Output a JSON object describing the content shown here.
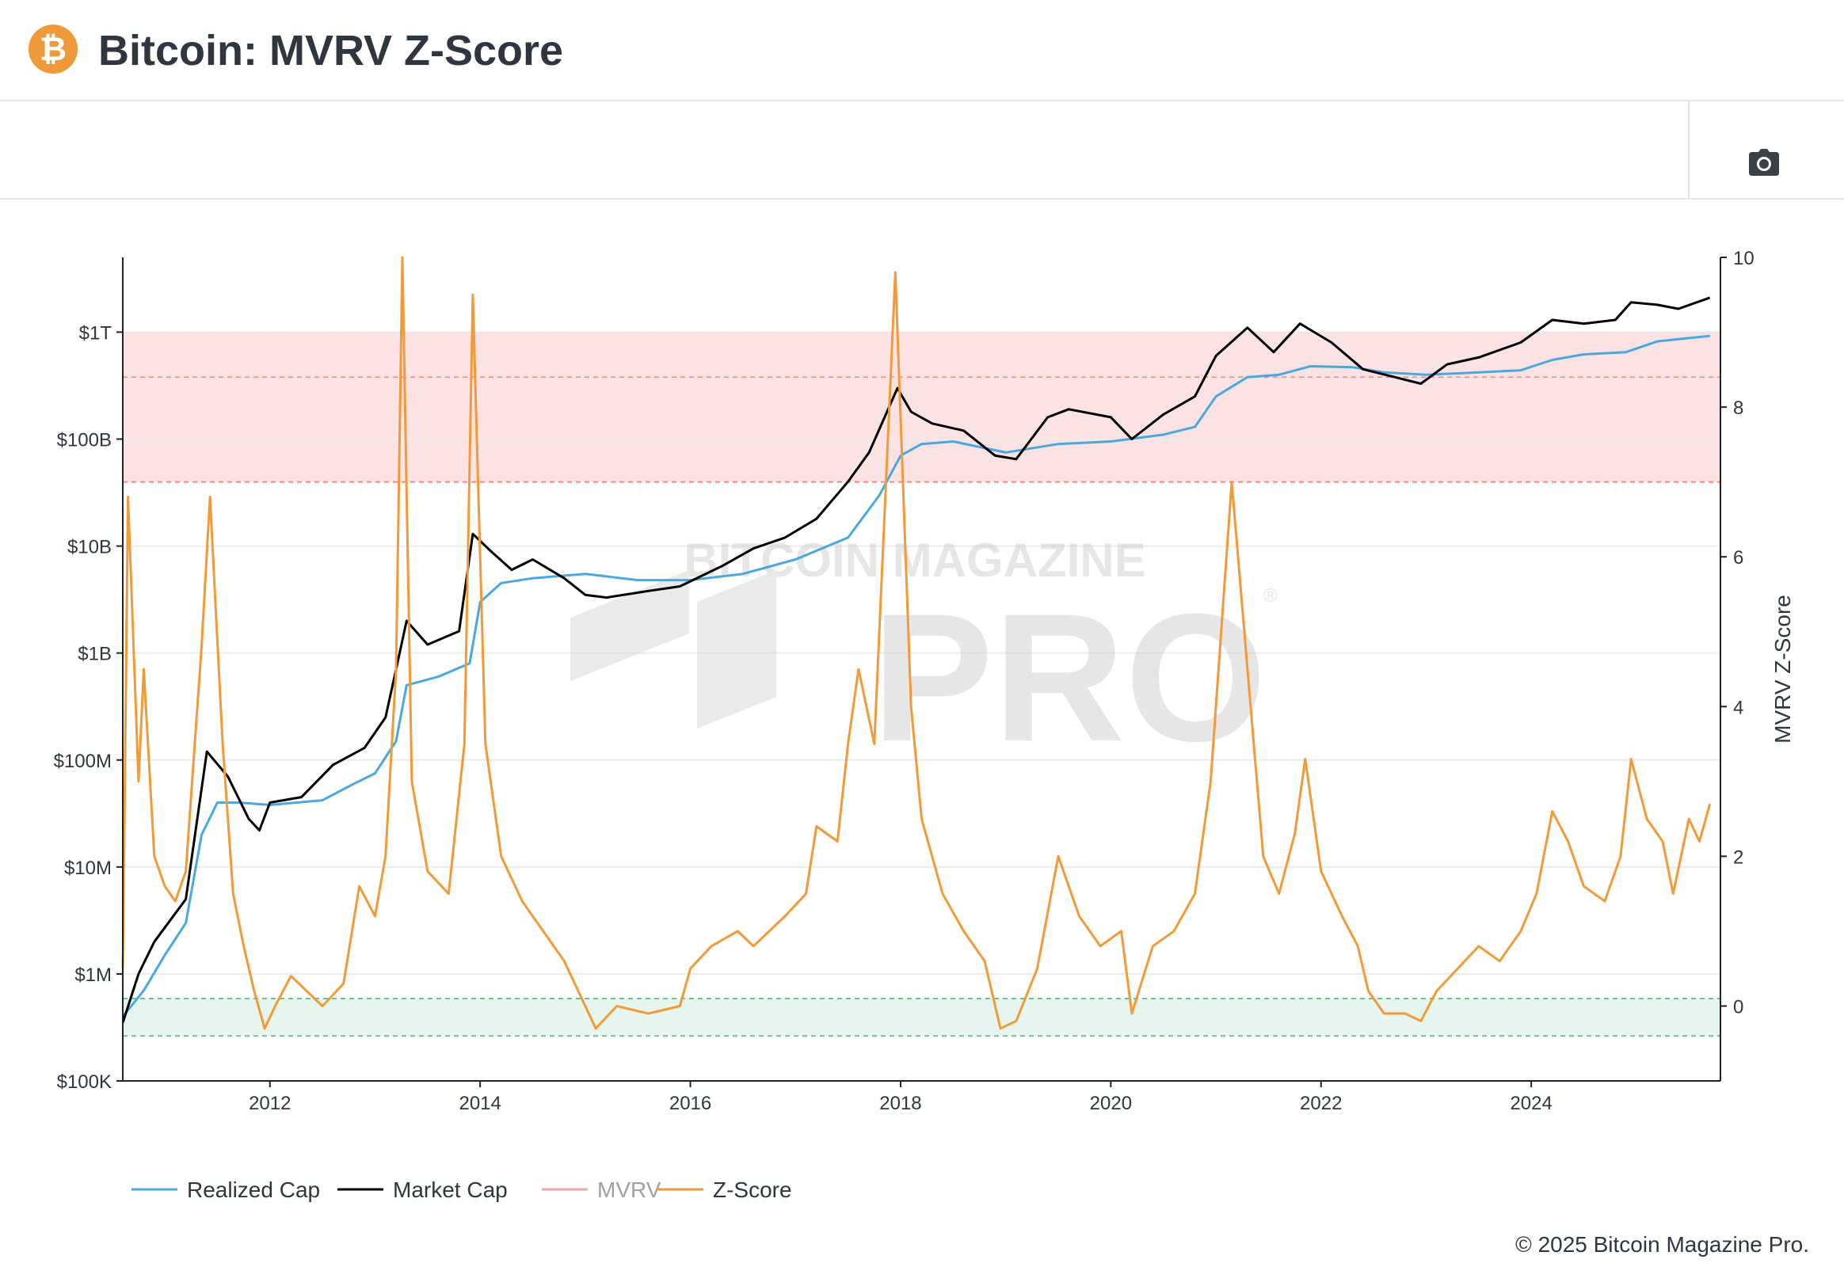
{
  "header": {
    "title": "Bitcoin: MVRV Z-Score",
    "logo_glyph": "₿",
    "logo_color": "#ef9a3a",
    "camera_icon": "camera-icon"
  },
  "watermark": {
    "line1": "BITCOIN MAGAZINE",
    "line2": "PRO",
    "registered": "®"
  },
  "footer": {
    "copyright": "© 2025 Bitcoin Magazine Pro."
  },
  "chart_data": {
    "type": "line",
    "title": "Bitcoin: MVRV Z-Score",
    "x_range": [
      2010.6,
      2025.8
    ],
    "x_ticks": [
      {
        "value": 2012,
        "label": "2012"
      },
      {
        "value": 2014,
        "label": "2014"
      },
      {
        "value": 2016,
        "label": "2016"
      },
      {
        "value": 2018,
        "label": "2018"
      },
      {
        "value": 2020,
        "label": "2020"
      },
      {
        "value": 2022,
        "label": "2022"
      },
      {
        "value": 2024,
        "label": "2024"
      }
    ],
    "y_left": {
      "scale": "log",
      "range": [
        100000,
        5000000000000
      ],
      "ticks": [
        {
          "value": 1000000000000,
          "label": "$1T"
        },
        {
          "value": 100000000000,
          "label": "$100B"
        },
        {
          "value": 10000000000,
          "label": "$10B"
        },
        {
          "value": 1000000000,
          "label": "$1B"
        },
        {
          "value": 100000000,
          "label": "$100M"
        },
        {
          "value": 10000000,
          "label": "$10M"
        },
        {
          "value": 1000000,
          "label": "$1M"
        },
        {
          "value": 100000,
          "label": "$100K"
        }
      ]
    },
    "y_right": {
      "label": "MVRV Z-Score",
      "range": [
        -1,
        10
      ],
      "ticks": [
        {
          "value": 10,
          "label": "10"
        },
        {
          "value": 8,
          "label": "8"
        },
        {
          "value": 6,
          "label": "6"
        },
        {
          "value": 4,
          "label": "4"
        },
        {
          "value": 2,
          "label": "2"
        },
        {
          "value": 0,
          "label": "0"
        }
      ]
    },
    "bands": [
      {
        "name": "red-zone",
        "from": 7,
        "to": 9,
        "color": "#fbe3e3",
        "line": "#e88a8a",
        "mid_line": 8.4
      },
      {
        "name": "green-zone",
        "from": -0.4,
        "to": 0.1,
        "color": "#e6f6ee",
        "line": "#6cc48b"
      }
    ],
    "series": [
      {
        "name": "Realized Cap",
        "color": "#4aa8e0",
        "axis": "left",
        "points": [
          [
            2010.6,
            400000
          ],
          [
            2010.8,
            700000
          ],
          [
            2011.0,
            1500000
          ],
          [
            2011.2,
            3000000
          ],
          [
            2011.35,
            20000000
          ],
          [
            2011.5,
            40000000
          ],
          [
            2011.7,
            40000000
          ],
          [
            2012.0,
            38000000
          ],
          [
            2012.5,
            42000000
          ],
          [
            2012.8,
            60000000
          ],
          [
            2013.0,
            75000000
          ],
          [
            2013.2,
            150000000
          ],
          [
            2013.3,
            500000000
          ],
          [
            2013.6,
            600000000
          ],
          [
            2013.9,
            800000000
          ],
          [
            2014.0,
            3000000000
          ],
          [
            2014.2,
            4500000000
          ],
          [
            2014.5,
            5000000000
          ],
          [
            2015.0,
            5500000000
          ],
          [
            2015.5,
            4800000000
          ],
          [
            2016.0,
            4800000000
          ],
          [
            2016.5,
            5500000000
          ],
          [
            2017.0,
            7500000000
          ],
          [
            2017.5,
            12000000000
          ],
          [
            2017.8,
            30000000000
          ],
          [
            2018.0,
            70000000000
          ],
          [
            2018.2,
            90000000000
          ],
          [
            2018.5,
            95000000000
          ],
          [
            2019.0,
            75000000000
          ],
          [
            2019.5,
            90000000000
          ],
          [
            2020.0,
            95000000000
          ],
          [
            2020.5,
            110000000000
          ],
          [
            2020.8,
            130000000000
          ],
          [
            2021.0,
            250000000000
          ],
          [
            2021.3,
            380000000000
          ],
          [
            2021.6,
            400000000000
          ],
          [
            2021.9,
            480000000000
          ],
          [
            2022.3,
            470000000000
          ],
          [
            2022.6,
            420000000000
          ],
          [
            2023.0,
            400000000000
          ],
          [
            2023.5,
            420000000000
          ],
          [
            2023.9,
            440000000000
          ],
          [
            2024.2,
            550000000000
          ],
          [
            2024.5,
            620000000000
          ],
          [
            2024.9,
            650000000000
          ],
          [
            2025.2,
            820000000000
          ],
          [
            2025.5,
            880000000000
          ],
          [
            2025.7,
            920000000000
          ]
        ]
      },
      {
        "name": "Market Cap",
        "color": "#000000",
        "axis": "left",
        "points": [
          [
            2010.6,
            350000
          ],
          [
            2010.75,
            1000000
          ],
          [
            2010.9,
            2000000
          ],
          [
            2011.2,
            5000000
          ],
          [
            2011.4,
            120000000
          ],
          [
            2011.6,
            70000000
          ],
          [
            2011.8,
            28000000
          ],
          [
            2011.9,
            22000000
          ],
          [
            2012.0,
            40000000
          ],
          [
            2012.3,
            45000000
          ],
          [
            2012.6,
            90000000
          ],
          [
            2012.9,
            130000000
          ],
          [
            2013.1,
            250000000
          ],
          [
            2013.2,
            700000000
          ],
          [
            2013.3,
            2000000000
          ],
          [
            2013.5,
            1200000000
          ],
          [
            2013.8,
            1600000000
          ],
          [
            2013.93,
            13000000000
          ],
          [
            2014.1,
            9000000000
          ],
          [
            2014.3,
            6000000000
          ],
          [
            2014.5,
            7500000000
          ],
          [
            2014.8,
            5000000000
          ],
          [
            2015.0,
            3500000000
          ],
          [
            2015.2,
            3300000000
          ],
          [
            2015.6,
            3800000000
          ],
          [
            2015.9,
            4200000000
          ],
          [
            2016.3,
            6500000000
          ],
          [
            2016.6,
            9500000000
          ],
          [
            2016.9,
            12000000000
          ],
          [
            2017.2,
            18000000000
          ],
          [
            2017.5,
            40000000000
          ],
          [
            2017.7,
            75000000000
          ],
          [
            2017.97,
            300000000000
          ],
          [
            2018.1,
            180000000000
          ],
          [
            2018.3,
            140000000000
          ],
          [
            2018.6,
            120000000000
          ],
          [
            2018.9,
            70000000000
          ],
          [
            2019.1,
            65000000000
          ],
          [
            2019.4,
            160000000000
          ],
          [
            2019.6,
            190000000000
          ],
          [
            2020.0,
            160000000000
          ],
          [
            2020.2,
            100000000000
          ],
          [
            2020.5,
            170000000000
          ],
          [
            2020.8,
            250000000000
          ],
          [
            2021.0,
            600000000000
          ],
          [
            2021.3,
            1100000000000
          ],
          [
            2021.55,
            650000000000
          ],
          [
            2021.8,
            1200000000000
          ],
          [
            2022.1,
            800000000000
          ],
          [
            2022.4,
            450000000000
          ],
          [
            2022.7,
            380000000000
          ],
          [
            2022.95,
            330000000000
          ],
          [
            2023.2,
            500000000000
          ],
          [
            2023.5,
            580000000000
          ],
          [
            2023.9,
            800000000000
          ],
          [
            2024.2,
            1300000000000
          ],
          [
            2024.5,
            1200000000000
          ],
          [
            2024.8,
            1300000000000
          ],
          [
            2024.95,
            1900000000000
          ],
          [
            2025.2,
            1800000000000
          ],
          [
            2025.4,
            1650000000000
          ],
          [
            2025.7,
            2100000000000
          ]
        ]
      },
      {
        "name": "MVRV",
        "color": "#f2a3a3",
        "axis": "left",
        "visible": false,
        "points": []
      },
      {
        "name": "Z-Score",
        "color": "#f29a38",
        "axis": "right",
        "points": [
          [
            2010.6,
            0.5
          ],
          [
            2010.65,
            6.8
          ],
          [
            2010.75,
            3.0
          ],
          [
            2010.8,
            4.5
          ],
          [
            2010.9,
            2.0
          ],
          [
            2011.0,
            1.6
          ],
          [
            2011.1,
            1.4
          ],
          [
            2011.2,
            1.8
          ],
          [
            2011.35,
            4.8
          ],
          [
            2011.43,
            6.8
          ],
          [
            2011.55,
            3.5
          ],
          [
            2011.65,
            1.5
          ],
          [
            2011.75,
            0.8
          ],
          [
            2011.85,
            0.2
          ],
          [
            2011.95,
            -0.3
          ],
          [
            2012.05,
            0.0
          ],
          [
            2012.2,
            0.4
          ],
          [
            2012.5,
            0.0
          ],
          [
            2012.7,
            0.3
          ],
          [
            2012.85,
            1.6
          ],
          [
            2013.0,
            1.2
          ],
          [
            2013.1,
            2.0
          ],
          [
            2013.2,
            4.5
          ],
          [
            2013.26,
            10.0
          ],
          [
            2013.35,
            3.0
          ],
          [
            2013.5,
            1.8
          ],
          [
            2013.7,
            1.5
          ],
          [
            2013.85,
            3.5
          ],
          [
            2013.93,
            9.5
          ],
          [
            2014.05,
            3.5
          ],
          [
            2014.2,
            2.0
          ],
          [
            2014.4,
            1.4
          ],
          [
            2014.6,
            1.0
          ],
          [
            2014.8,
            0.6
          ],
          [
            2015.0,
            0.0
          ],
          [
            2015.1,
            -0.3
          ],
          [
            2015.3,
            0.0
          ],
          [
            2015.6,
            -0.1
          ],
          [
            2015.9,
            0.0
          ],
          [
            2016.0,
            0.5
          ],
          [
            2016.2,
            0.8
          ],
          [
            2016.45,
            1.0
          ],
          [
            2016.6,
            0.8
          ],
          [
            2016.9,
            1.2
          ],
          [
            2017.1,
            1.5
          ],
          [
            2017.2,
            2.4
          ],
          [
            2017.4,
            2.2
          ],
          [
            2017.5,
            3.5
          ],
          [
            2017.6,
            4.5
          ],
          [
            2017.75,
            3.5
          ],
          [
            2017.95,
            9.8
          ],
          [
            2018.1,
            4.0
          ],
          [
            2018.2,
            2.5
          ],
          [
            2018.4,
            1.5
          ],
          [
            2018.6,
            1.0
          ],
          [
            2018.8,
            0.6
          ],
          [
            2018.95,
            -0.3
          ],
          [
            2019.1,
            -0.2
          ],
          [
            2019.3,
            0.5
          ],
          [
            2019.5,
            2.0
          ],
          [
            2019.7,
            1.2
          ],
          [
            2019.9,
            0.8
          ],
          [
            2020.1,
            1.0
          ],
          [
            2020.2,
            -0.1
          ],
          [
            2020.4,
            0.8
          ],
          [
            2020.6,
            1.0
          ],
          [
            2020.8,
            1.5
          ],
          [
            2020.95,
            3.0
          ],
          [
            2021.05,
            5.0
          ],
          [
            2021.15,
            7.0
          ],
          [
            2021.3,
            4.5
          ],
          [
            2021.45,
            2.0
          ],
          [
            2021.6,
            1.5
          ],
          [
            2021.75,
            2.3
          ],
          [
            2021.85,
            3.3
          ],
          [
            2022.0,
            1.8
          ],
          [
            2022.2,
            1.2
          ],
          [
            2022.35,
            0.8
          ],
          [
            2022.45,
            0.2
          ],
          [
            2022.6,
            -0.1
          ],
          [
            2022.8,
            -0.1
          ],
          [
            2022.95,
            -0.2
          ],
          [
            2023.1,
            0.2
          ],
          [
            2023.3,
            0.5
          ],
          [
            2023.5,
            0.8
          ],
          [
            2023.7,
            0.6
          ],
          [
            2023.9,
            1.0
          ],
          [
            2024.05,
            1.5
          ],
          [
            2024.2,
            2.6
          ],
          [
            2024.35,
            2.2
          ],
          [
            2024.5,
            1.6
          ],
          [
            2024.7,
            1.4
          ],
          [
            2024.85,
            2.0
          ],
          [
            2024.95,
            3.3
          ],
          [
            2025.1,
            2.5
          ],
          [
            2025.25,
            2.2
          ],
          [
            2025.35,
            1.5
          ],
          [
            2025.5,
            2.5
          ],
          [
            2025.6,
            2.2
          ],
          [
            2025.7,
            2.7
          ]
        ]
      }
    ],
    "legend": [
      {
        "name": "Realized Cap",
        "color": "#4aa8e0",
        "visible": true
      },
      {
        "name": "Market Cap",
        "color": "#000000",
        "visible": true
      },
      {
        "name": "MVRV",
        "color": "#f2a3a3",
        "visible": false
      },
      {
        "name": "Z-Score",
        "color": "#f29a38",
        "visible": true
      }
    ],
    "legend_position": "bottom-left"
  }
}
